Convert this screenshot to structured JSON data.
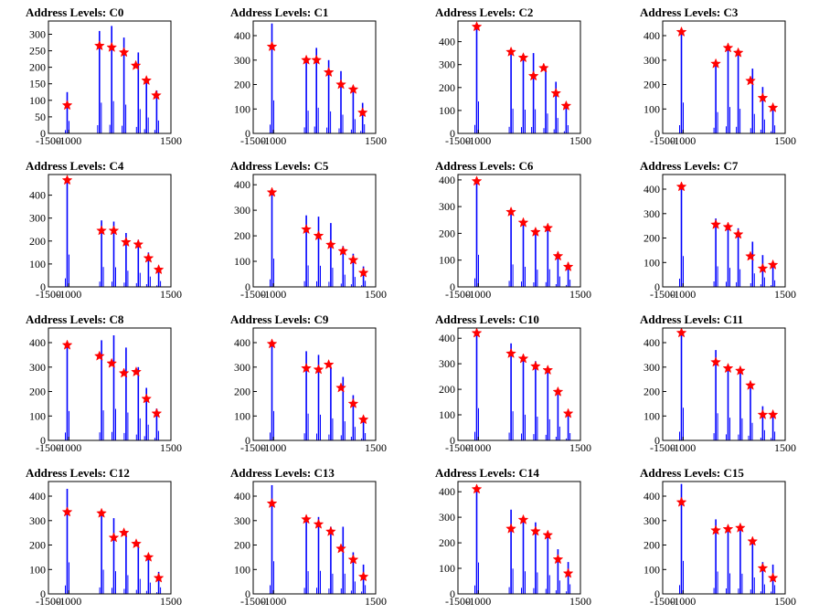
{
  "colors": {
    "histogram": "#0000ff",
    "marker": "#ff0000",
    "frame": "#000000",
    "background": "#ffffff"
  },
  "chart_data": [
    {
      "type": "histogram",
      "title": "Address Levels: C0",
      "xlim": [
        -1500,
        1500
      ],
      "ylim": [
        0,
        340
      ],
      "xticks": [
        -1500,
        -1000,
        1500
      ],
      "yticks": [
        0,
        50,
        100,
        150,
        200,
        250,
        300
      ],
      "peaks": [
        {
          "x": -1040,
          "y": 125
        },
        {
          "x": -250,
          "y": 310
        },
        {
          "x": 50,
          "y": 325
        },
        {
          "x": 350,
          "y": 290
        },
        {
          "x": 700,
          "y": 245
        },
        {
          "x": 900,
          "y": 160
        },
        {
          "x": 1150,
          "y": 130
        }
      ],
      "markers": [
        {
          "x": -1040,
          "y": 85
        },
        {
          "x": -250,
          "y": 265
        },
        {
          "x": 50,
          "y": 260
        },
        {
          "x": 350,
          "y": 245
        },
        {
          "x": 640,
          "y": 205
        },
        {
          "x": 900,
          "y": 160
        },
        {
          "x": 1140,
          "y": 115
        }
      ]
    },
    {
      "type": "histogram",
      "title": "Address Levels: C1",
      "xlim": [
        -1500,
        1500
      ],
      "ylim": [
        0,
        460
      ],
      "xticks": [
        -1500,
        -1000,
        1500
      ],
      "yticks": [
        0,
        100,
        200,
        300,
        400
      ],
      "peaks": [
        {
          "x": -1040,
          "y": 450
        },
        {
          "x": -200,
          "y": 310
        },
        {
          "x": 50,
          "y": 350
        },
        {
          "x": 350,
          "y": 300
        },
        {
          "x": 650,
          "y": 255
        },
        {
          "x": 950,
          "y": 195
        },
        {
          "x": 1180,
          "y": 125
        }
      ],
      "markers": [
        {
          "x": -1040,
          "y": 355
        },
        {
          "x": -200,
          "y": 300
        },
        {
          "x": 50,
          "y": 300
        },
        {
          "x": 350,
          "y": 250
        },
        {
          "x": 650,
          "y": 200
        },
        {
          "x": 950,
          "y": 180
        },
        {
          "x": 1180,
          "y": 85
        }
      ]
    },
    {
      "type": "histogram",
      "title": "Address Levels: C2",
      "xlim": [
        -1500,
        1500
      ],
      "ylim": [
        0,
        490
      ],
      "xticks": [
        -1500,
        -1000,
        1500
      ],
      "yticks": [
        0,
        100,
        200,
        300,
        400
      ],
      "peaks": [
        {
          "x": -1040,
          "y": 465
        },
        {
          "x": -200,
          "y": 360
        },
        {
          "x": 100,
          "y": 345
        },
        {
          "x": 350,
          "y": 350
        },
        {
          "x": 650,
          "y": 290
        },
        {
          "x": 900,
          "y": 225
        },
        {
          "x": 1150,
          "y": 120
        }
      ],
      "markers": [
        {
          "x": -1040,
          "y": 465
        },
        {
          "x": -200,
          "y": 355
        },
        {
          "x": 100,
          "y": 330
        },
        {
          "x": 350,
          "y": 250
        },
        {
          "x": 600,
          "y": 285
        },
        {
          "x": 900,
          "y": 175
        },
        {
          "x": 1150,
          "y": 120
        }
      ]
    },
    {
      "type": "histogram",
      "title": "Address Levels: C3",
      "xlim": [
        -1500,
        1500
      ],
      "ylim": [
        0,
        460
      ],
      "xticks": [
        -1500,
        -1000,
        1500
      ],
      "yticks": [
        0,
        100,
        200,
        300,
        400
      ],
      "peaks": [
        {
          "x": -1040,
          "y": 420
        },
        {
          "x": -200,
          "y": 290
        },
        {
          "x": 100,
          "y": 360
        },
        {
          "x": 350,
          "y": 335
        },
        {
          "x": 700,
          "y": 265
        },
        {
          "x": 950,
          "y": 190
        },
        {
          "x": 1200,
          "y": 110
        }
      ],
      "markers": [
        {
          "x": -1040,
          "y": 415
        },
        {
          "x": -200,
          "y": 285
        },
        {
          "x": 100,
          "y": 350
        },
        {
          "x": 350,
          "y": 330
        },
        {
          "x": 650,
          "y": 215
        },
        {
          "x": 950,
          "y": 145
        },
        {
          "x": 1200,
          "y": 105
        }
      ]
    },
    {
      "type": "histogram",
      "title": "Address Levels: C4",
      "xlim": [
        -1500,
        1500
      ],
      "ylim": [
        0,
        490
      ],
      "xticks": [
        -1500,
        -1000,
        1500
      ],
      "yticks": [
        0,
        100,
        200,
        300,
        400
      ],
      "peaks": [
        {
          "x": -1040,
          "y": 470
        },
        {
          "x": -200,
          "y": 290
        },
        {
          "x": 100,
          "y": 285
        },
        {
          "x": 400,
          "y": 235
        },
        {
          "x": 700,
          "y": 205
        },
        {
          "x": 950,
          "y": 150
        },
        {
          "x": 1200,
          "y": 85
        }
      ],
      "markers": [
        {
          "x": -1040,
          "y": 465
        },
        {
          "x": -200,
          "y": 245
        },
        {
          "x": 100,
          "y": 245
        },
        {
          "x": 400,
          "y": 195
        },
        {
          "x": 700,
          "y": 185
        },
        {
          "x": 950,
          "y": 125
        },
        {
          "x": 1200,
          "y": 75
        }
      ]
    },
    {
      "type": "histogram",
      "title": "Address Levels: C5",
      "xlim": [
        -1500,
        1500
      ],
      "ylim": [
        0,
        440
      ],
      "xticks": [
        -1500,
        -1000,
        1500
      ],
      "yticks": [
        0,
        100,
        200,
        300,
        400
      ],
      "peaks": [
        {
          "x": -1040,
          "y": 370
        },
        {
          "x": -200,
          "y": 280
        },
        {
          "x": 100,
          "y": 275
        },
        {
          "x": 400,
          "y": 250
        },
        {
          "x": 700,
          "y": 160
        },
        {
          "x": 950,
          "y": 130
        },
        {
          "x": 1200,
          "y": 80
        }
      ],
      "markers": [
        {
          "x": -1040,
          "y": 370
        },
        {
          "x": -200,
          "y": 225
        },
        {
          "x": 100,
          "y": 200
        },
        {
          "x": 400,
          "y": 165
        },
        {
          "x": 700,
          "y": 140
        },
        {
          "x": 950,
          "y": 105
        },
        {
          "x": 1200,
          "y": 55
        }
      ]
    },
    {
      "type": "histogram",
      "title": "Address Levels: C6",
      "xlim": [
        -1500,
        1500
      ],
      "ylim": [
        0,
        420
      ],
      "xticks": [
        -1500,
        -1000,
        1500
      ],
      "yticks": [
        0,
        100,
        200,
        300,
        400
      ],
      "peaks": [
        {
          "x": -1040,
          "y": 400
        },
        {
          "x": -200,
          "y": 280
        },
        {
          "x": 100,
          "y": 250
        },
        {
          "x": 400,
          "y": 215
        },
        {
          "x": 700,
          "y": 220
        },
        {
          "x": 950,
          "y": 130
        },
        {
          "x": 1200,
          "y": 90
        }
      ],
      "markers": [
        {
          "x": -1040,
          "y": 395
        },
        {
          "x": -200,
          "y": 280
        },
        {
          "x": 100,
          "y": 240
        },
        {
          "x": 400,
          "y": 205
        },
        {
          "x": 700,
          "y": 220
        },
        {
          "x": 950,
          "y": 115
        },
        {
          "x": 1200,
          "y": 75
        }
      ]
    },
    {
      "type": "histogram",
      "title": "Address Levels: C7",
      "xlim": [
        -1500,
        1500
      ],
      "ylim": [
        0,
        460
      ],
      "xticks": [
        -1500,
        -1000,
        1500
      ],
      "yticks": [
        0,
        100,
        200,
        300,
        400
      ],
      "peaks": [
        {
          "x": -1040,
          "y": 420
        },
        {
          "x": -200,
          "y": 280
        },
        {
          "x": 100,
          "y": 260
        },
        {
          "x": 350,
          "y": 240
        },
        {
          "x": 700,
          "y": 185
        },
        {
          "x": 950,
          "y": 130
        },
        {
          "x": 1200,
          "y": 90
        }
      ],
      "markers": [
        {
          "x": -1040,
          "y": 410
        },
        {
          "x": -200,
          "y": 255
        },
        {
          "x": 100,
          "y": 245
        },
        {
          "x": 350,
          "y": 215
        },
        {
          "x": 650,
          "y": 125
        },
        {
          "x": 950,
          "y": 75
        },
        {
          "x": 1200,
          "y": 90
        }
      ]
    },
    {
      "type": "histogram",
      "title": "Address Levels: C8",
      "xlim": [
        -1500,
        1500
      ],
      "ylim": [
        0,
        460
      ],
      "xticks": [
        -1500,
        -1000,
        1500
      ],
      "yticks": [
        0,
        100,
        200,
        300,
        400
      ],
      "peaks": [
        {
          "x": -1040,
          "y": 400
        },
        {
          "x": -200,
          "y": 410
        },
        {
          "x": 100,
          "y": 430
        },
        {
          "x": 400,
          "y": 380
        },
        {
          "x": 700,
          "y": 300
        },
        {
          "x": 900,
          "y": 215
        },
        {
          "x": 1150,
          "y": 130
        }
      ],
      "markers": [
        {
          "x": -1040,
          "y": 390
        },
        {
          "x": -250,
          "y": 345
        },
        {
          "x": 50,
          "y": 315
        },
        {
          "x": 350,
          "y": 275
        },
        {
          "x": 650,
          "y": 280
        },
        {
          "x": 900,
          "y": 170
        },
        {
          "x": 1150,
          "y": 110
        }
      ]
    },
    {
      "type": "histogram",
      "title": "Address Levels: C9",
      "xlim": [
        -1500,
        1500
      ],
      "ylim": [
        0,
        460
      ],
      "xticks": [
        -1500,
        -1000,
        1500
      ],
      "yticks": [
        0,
        100,
        200,
        300,
        400
      ],
      "peaks": [
        {
          "x": -1040,
          "y": 400
        },
        {
          "x": -200,
          "y": 365
        },
        {
          "x": 100,
          "y": 350
        },
        {
          "x": 400,
          "y": 300
        },
        {
          "x": 700,
          "y": 260
        },
        {
          "x": 950,
          "y": 185
        },
        {
          "x": 1200,
          "y": 100
        }
      ],
      "markers": [
        {
          "x": -1040,
          "y": 395
        },
        {
          "x": -200,
          "y": 295
        },
        {
          "x": 100,
          "y": 290
        },
        {
          "x": 350,
          "y": 310
        },
        {
          "x": 650,
          "y": 215
        },
        {
          "x": 950,
          "y": 150
        },
        {
          "x": 1200,
          "y": 85
        }
      ]
    },
    {
      "type": "histogram",
      "title": "Address Levels: C10",
      "xlim": [
        -1500,
        1500
      ],
      "ylim": [
        0,
        440
      ],
      "xticks": [
        -1500,
        -1000,
        1500
      ],
      "yticks": [
        0,
        100,
        200,
        300,
        400
      ],
      "peaks": [
        {
          "x": -1040,
          "y": 420
        },
        {
          "x": -200,
          "y": 380
        },
        {
          "x": 100,
          "y": 335
        },
        {
          "x": 400,
          "y": 310
        },
        {
          "x": 700,
          "y": 275
        },
        {
          "x": 950,
          "y": 180
        },
        {
          "x": 1200,
          "y": 95
        }
      ],
      "markers": [
        {
          "x": -1040,
          "y": 420
        },
        {
          "x": -200,
          "y": 340
        },
        {
          "x": 100,
          "y": 320
        },
        {
          "x": 400,
          "y": 290
        },
        {
          "x": 700,
          "y": 275
        },
        {
          "x": 950,
          "y": 190
        },
        {
          "x": 1200,
          "y": 105
        }
      ]
    },
    {
      "type": "histogram",
      "title": "Address Levels: C11",
      "xlim": [
        -1500,
        1500
      ],
      "ylim": [
        0,
        460
      ],
      "xticks": [
        -1500,
        -1000,
        1500
      ],
      "yticks": [
        0,
        100,
        200,
        300,
        400
      ],
      "peaks": [
        {
          "x": -1040,
          "y": 445
        },
        {
          "x": -200,
          "y": 370
        },
        {
          "x": 100,
          "y": 310
        },
        {
          "x": 400,
          "y": 300
        },
        {
          "x": 650,
          "y": 240
        },
        {
          "x": 950,
          "y": 140
        },
        {
          "x": 1200,
          "y": 120
        }
      ],
      "markers": [
        {
          "x": -1040,
          "y": 440
        },
        {
          "x": -200,
          "y": 320
        },
        {
          "x": 100,
          "y": 295
        },
        {
          "x": 400,
          "y": 285
        },
        {
          "x": 650,
          "y": 225
        },
        {
          "x": 950,
          "y": 105
        },
        {
          "x": 1200,
          "y": 105
        }
      ]
    },
    {
      "type": "histogram",
      "title": "Address Levels: C12",
      "xlim": [
        -1500,
        1500
      ],
      "ylim": [
        0,
        460
      ],
      "xticks": [
        -1500,
        -1000,
        1500
      ],
      "yticks": [
        0,
        100,
        200,
        300,
        400
      ],
      "peaks": [
        {
          "x": -1040,
          "y": 430
        },
        {
          "x": -200,
          "y": 330
        },
        {
          "x": 100,
          "y": 310
        },
        {
          "x": 400,
          "y": 255
        },
        {
          "x": 700,
          "y": 205
        },
        {
          "x": 950,
          "y": 155
        },
        {
          "x": 1200,
          "y": 90
        }
      ],
      "markers": [
        {
          "x": -1040,
          "y": 335
        },
        {
          "x": -200,
          "y": 330
        },
        {
          "x": 100,
          "y": 230
        },
        {
          "x": 350,
          "y": 250
        },
        {
          "x": 650,
          "y": 205
        },
        {
          "x": 950,
          "y": 150
        },
        {
          "x": 1200,
          "y": 65
        }
      ]
    },
    {
      "type": "histogram",
      "title": "Address Levels: C13",
      "xlim": [
        -1500,
        1500
      ],
      "ylim": [
        0,
        460
      ],
      "xticks": [
        -1500,
        -1000,
        1500
      ],
      "yticks": [
        0,
        100,
        200,
        300,
        400
      ],
      "peaks": [
        {
          "x": -1040,
          "y": 445
        },
        {
          "x": -200,
          "y": 310
        },
        {
          "x": 100,
          "y": 315
        },
        {
          "x": 400,
          "y": 275
        },
        {
          "x": 700,
          "y": 275
        },
        {
          "x": 950,
          "y": 170
        },
        {
          "x": 1200,
          "y": 120
        }
      ],
      "markers": [
        {
          "x": -1040,
          "y": 370
        },
        {
          "x": -200,
          "y": 305
        },
        {
          "x": 100,
          "y": 285
        },
        {
          "x": 400,
          "y": 255
        },
        {
          "x": 650,
          "y": 185
        },
        {
          "x": 950,
          "y": 140
        },
        {
          "x": 1200,
          "y": 70
        }
      ]
    },
    {
      "type": "histogram",
      "title": "Address Levels: C14",
      "xlim": [
        -1500,
        1500
      ],
      "ylim": [
        0,
        440
      ],
      "xticks": [
        -1500,
        -1000,
        1500
      ],
      "yticks": [
        0,
        100,
        200,
        300,
        400
      ],
      "peaks": [
        {
          "x": -1040,
          "y": 410
        },
        {
          "x": -200,
          "y": 330
        },
        {
          "x": 100,
          "y": 295
        },
        {
          "x": 400,
          "y": 280
        },
        {
          "x": 700,
          "y": 245
        },
        {
          "x": 950,
          "y": 175
        },
        {
          "x": 1200,
          "y": 125
        }
      ],
      "markers": [
        {
          "x": -1040,
          "y": 410
        },
        {
          "x": -200,
          "y": 255
        },
        {
          "x": 100,
          "y": 290
        },
        {
          "x": 400,
          "y": 245
        },
        {
          "x": 700,
          "y": 230
        },
        {
          "x": 950,
          "y": 135
        },
        {
          "x": 1200,
          "y": 80
        }
      ]
    },
    {
      "type": "histogram",
      "title": "Address Levels: C15",
      "xlim": [
        -1500,
        1500
      ],
      "ylim": [
        0,
        460
      ],
      "xticks": [
        -1500,
        -1000,
        1500
      ],
      "yticks": [
        0,
        100,
        200,
        300,
        400
      ],
      "peaks": [
        {
          "x": -1040,
          "y": 450
        },
        {
          "x": -200,
          "y": 305
        },
        {
          "x": 100,
          "y": 280
        },
        {
          "x": 400,
          "y": 275
        },
        {
          "x": 700,
          "y": 225
        },
        {
          "x": 950,
          "y": 130
        },
        {
          "x": 1200,
          "y": 120
        }
      ],
      "markers": [
        {
          "x": -1040,
          "y": 375
        },
        {
          "x": -200,
          "y": 260
        },
        {
          "x": 100,
          "y": 265
        },
        {
          "x": 400,
          "y": 270
        },
        {
          "x": 700,
          "y": 215
        },
        {
          "x": 950,
          "y": 105
        },
        {
          "x": 1200,
          "y": 65
        }
      ]
    }
  ]
}
